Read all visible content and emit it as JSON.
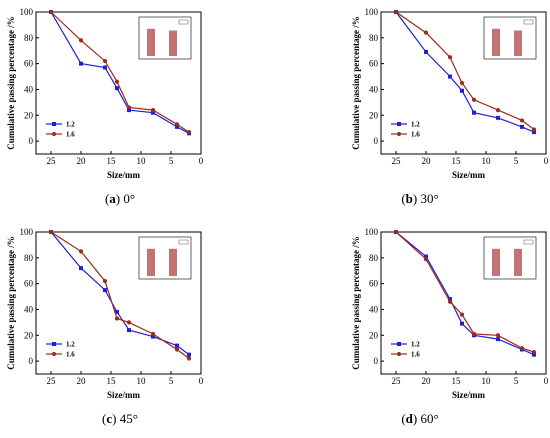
{
  "chart_data": [
    {
      "type": "line",
      "panel_letter": "a",
      "caption_suffix": " 0°",
      "x": [
        25,
        20,
        16,
        14,
        12,
        8,
        4,
        2
      ],
      "series": [
        {
          "name": "1.2",
          "color": "#1f1fd6",
          "marker": "square",
          "values": [
            100,
            60,
            57,
            41,
            24,
            22,
            11,
            6
          ]
        },
        {
          "name": "1.6",
          "color": "#9b2b1b",
          "marker": "circle",
          "values": [
            100,
            78,
            62,
            46,
            26,
            24,
            13,
            7
          ]
        }
      ],
      "xlabel": "Size/mm",
      "ylabel": "Cumulative passing percentage /%",
      "xlim": [
        27.5,
        0
      ],
      "ylim": [
        -10,
        100
      ],
      "xticks": [
        25,
        20,
        15,
        10,
        5,
        0
      ],
      "yticks": [
        0,
        20,
        40,
        60,
        80,
        100
      ],
      "legend_position": "bottom-left",
      "inset": {
        "bars": [
          0.8,
          0.75
        ]
      }
    },
    {
      "type": "line",
      "panel_letter": "b",
      "caption_suffix": " 30°",
      "x": [
        25,
        20,
        16,
        14,
        12,
        8,
        4,
        2
      ],
      "series": [
        {
          "name": "1.2",
          "color": "#1f1fd6",
          "marker": "square",
          "values": [
            100,
            69,
            50,
            39,
            22,
            18,
            11,
            7
          ]
        },
        {
          "name": "1.6",
          "color": "#9b2b1b",
          "marker": "circle",
          "values": [
            100,
            84,
            65,
            45,
            32,
            24,
            16,
            9
          ]
        }
      ],
      "xlabel": "Size/mm",
      "ylabel": "Cumulative passing percentage /%",
      "xlim": [
        27.5,
        0
      ],
      "ylim": [
        -10,
        100
      ],
      "xticks": [
        25,
        20,
        15,
        10,
        5,
        0
      ],
      "yticks": [
        0,
        20,
        40,
        60,
        80,
        100
      ],
      "legend_position": "bottom-left",
      "inset": {
        "bars": [
          0.8,
          0.75
        ]
      }
    },
    {
      "type": "line",
      "panel_letter": "c",
      "caption_suffix": " 45°",
      "x": [
        25,
        20,
        16,
        14,
        12,
        8,
        4,
        2
      ],
      "series": [
        {
          "name": "1.2",
          "color": "#1f1fd6",
          "marker": "square",
          "values": [
            100,
            72,
            55,
            38,
            24,
            19,
            12,
            5
          ]
        },
        {
          "name": "1.6",
          "color": "#9b2b1b",
          "marker": "circle",
          "values": [
            100,
            85,
            62,
            33,
            30,
            21,
            9,
            2
          ]
        }
      ],
      "xlabel": "Size/mm",
      "ylabel": "Cumulative passing percentage /%",
      "xlim": [
        27.5,
        0
      ],
      "ylim": [
        -10,
        100
      ],
      "xticks": [
        25,
        20,
        15,
        10,
        5,
        0
      ],
      "yticks": [
        0,
        20,
        40,
        60,
        80,
        100
      ],
      "legend_position": "bottom-left",
      "inset": {
        "bars": [
          0.8,
          0.8
        ]
      }
    },
    {
      "type": "line",
      "panel_letter": "d",
      "caption_suffix": " 60°",
      "x": [
        25,
        20,
        16,
        14,
        12,
        8,
        4,
        2
      ],
      "series": [
        {
          "name": "1.2",
          "color": "#1f1fd6",
          "marker": "square",
          "values": [
            100,
            81,
            48,
            29,
            20,
            17,
            9,
            5
          ]
        },
        {
          "name": "1.6",
          "color": "#9b2b1b",
          "marker": "circle",
          "values": [
            100,
            79,
            46,
            36,
            21,
            20,
            10,
            7
          ]
        }
      ],
      "xlabel": "Size/mm",
      "ylabel": "Cumulative passing percentage /%",
      "xlim": [
        27.5,
        0
      ],
      "ylim": [
        -10,
        100
      ],
      "xticks": [
        25,
        20,
        15,
        10,
        5,
        0
      ],
      "yticks": [
        0,
        20,
        40,
        60,
        80,
        100
      ],
      "legend_position": "bottom-left",
      "inset": {
        "bars": [
          0.8,
          0.8
        ]
      }
    }
  ]
}
